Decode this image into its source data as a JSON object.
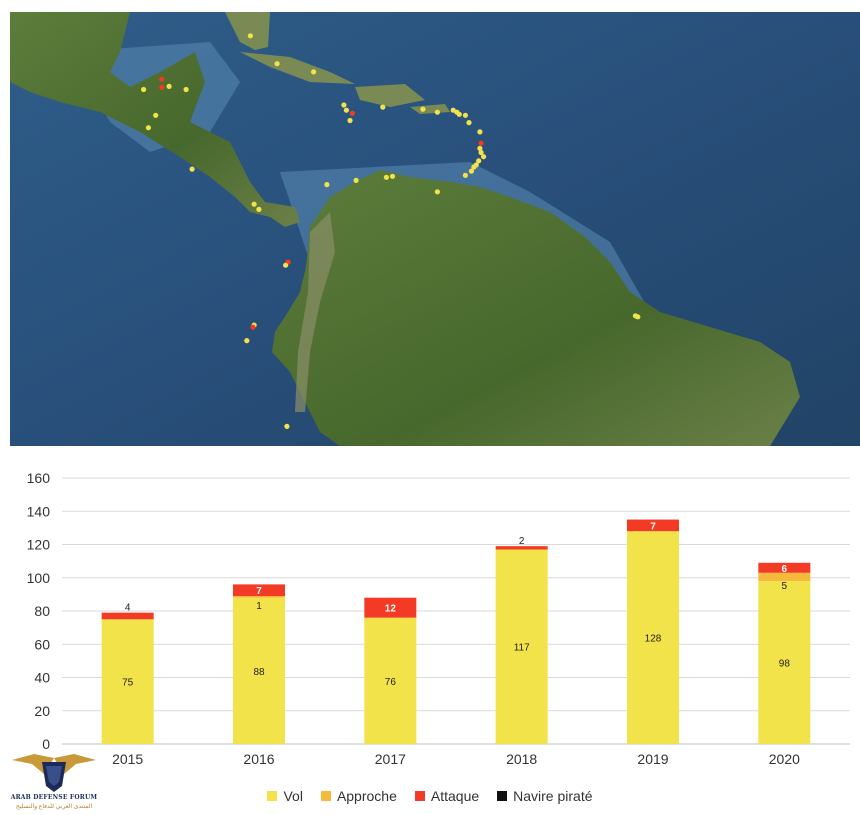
{
  "map": {
    "points": [
      {
        "lat": 25.7,
        "lon": -80.2,
        "type": "theft"
      },
      {
        "lat": 21.5,
        "lon": -87.5,
        "type": "attack"
      },
      {
        "lat": 20.7,
        "lon": -87.5,
        "type": "attack"
      },
      {
        "lat": 20.5,
        "lon": -89.0,
        "type": "theft"
      },
      {
        "lat": 20.8,
        "lon": -86.9,
        "type": "theft"
      },
      {
        "lat": 20.5,
        "lon": -85.5,
        "type": "theft"
      },
      {
        "lat": 18.0,
        "lon": -88.0,
        "type": "theft"
      },
      {
        "lat": 16.8,
        "lon": -88.6,
        "type": "theft"
      },
      {
        "lat": 23.0,
        "lon": -78.0,
        "type": "theft"
      },
      {
        "lat": 22.2,
        "lon": -75.0,
        "type": "theft"
      },
      {
        "lat": 19.0,
        "lon": -72.5,
        "type": "theft"
      },
      {
        "lat": 18.5,
        "lon": -72.3,
        "type": "theft"
      },
      {
        "lat": 18.2,
        "lon": -71.8,
        "type": "attack"
      },
      {
        "lat": 17.5,
        "lon": -72.0,
        "type": "theft"
      },
      {
        "lat": 18.8,
        "lon": -69.3,
        "type": "theft"
      },
      {
        "lat": 18.6,
        "lon": -66.0,
        "type": "theft"
      },
      {
        "lat": 18.3,
        "lon": -64.8,
        "type": "theft"
      },
      {
        "lat": 18.5,
        "lon": -63.5,
        "type": "theft"
      },
      {
        "lat": 18.3,
        "lon": -63.2,
        "type": "theft"
      },
      {
        "lat": 18.1,
        "lon": -63.0,
        "type": "theft"
      },
      {
        "lat": 18.0,
        "lon": -62.5,
        "type": "theft"
      },
      {
        "lat": 17.3,
        "lon": -62.2,
        "type": "theft"
      },
      {
        "lat": 16.4,
        "lon": -61.3,
        "type": "theft"
      },
      {
        "lat": 15.3,
        "lon": -61.2,
        "type": "attack"
      },
      {
        "lat": 14.8,
        "lon": -61.3,
        "type": "theft"
      },
      {
        "lat": 14.4,
        "lon": -61.2,
        "type": "theft"
      },
      {
        "lat": 14.0,
        "lon": -61.0,
        "type": "theft"
      },
      {
        "lat": 13.6,
        "lon": -61.4,
        "type": "theft"
      },
      {
        "lat": 13.2,
        "lon": -61.6,
        "type": "theft"
      },
      {
        "lat": 13.0,
        "lon": -61.8,
        "type": "theft"
      },
      {
        "lat": 12.6,
        "lon": -62.0,
        "type": "theft"
      },
      {
        "lat": 12.2,
        "lon": -62.5,
        "type": "theft"
      },
      {
        "lat": 12.0,
        "lon": -69.0,
        "type": "theft"
      },
      {
        "lat": 12.1,
        "lon": -68.5,
        "type": "theft"
      },
      {
        "lat": 11.7,
        "lon": -71.5,
        "type": "theft"
      },
      {
        "lat": 11.3,
        "lon": -73.9,
        "type": "theft"
      },
      {
        "lat": 10.6,
        "lon": -64.8,
        "type": "theft"
      },
      {
        "lat": 9.4,
        "lon": -79.9,
        "type": "theft"
      },
      {
        "lat": 8.9,
        "lon": -79.5,
        "type": "theft"
      },
      {
        "lat": 12.8,
        "lon": -85.0,
        "type": "theft"
      },
      {
        "lat": 3.8,
        "lon": -77.1,
        "type": "attack"
      },
      {
        "lat": 3.5,
        "lon": -77.3,
        "type": "theft"
      },
      {
        "lat": -2.3,
        "lon": -79.9,
        "type": "theft"
      },
      {
        "lat": -2.5,
        "lon": -80.0,
        "type": "attack"
      },
      {
        "lat": -3.8,
        "lon": -80.5,
        "type": "theft"
      },
      {
        "lat": -12.1,
        "lon": -77.2,
        "type": "theft"
      },
      {
        "lat": -1.4,
        "lon": -48.5,
        "type": "theft"
      },
      {
        "lat": -1.5,
        "lon": -48.3,
        "type": "theft"
      }
    ]
  },
  "chart_data": {
    "type": "bar",
    "stacked": true,
    "categories": [
      "2015",
      "2016",
      "2017",
      "2018",
      "2019",
      "2020"
    ],
    "ylim": [
      0,
      160
    ],
    "yticks": [
      "0",
      "20",
      "40",
      "60",
      "80",
      "100",
      "120",
      "140",
      "160"
    ],
    "grid": true,
    "legend_position": "bottom",
    "series": [
      {
        "name": "Vol",
        "color": "#F2E34A",
        "values": [
          75,
          88,
          76,
          117,
          128,
          98
        ],
        "labels": [
          "75",
          "88",
          "76",
          "117",
          "128",
          "98"
        ]
      },
      {
        "name": "Approche",
        "color": "#F6B93B",
        "values": [
          0,
          1,
          0,
          0,
          0,
          5
        ],
        "labels": [
          "",
          "1",
          "",
          "",
          "",
          "5"
        ]
      },
      {
        "name": "Attaque",
        "color": "#F23A24",
        "values": [
          4,
          7,
          12,
          2,
          7,
          6
        ],
        "labels": [
          "4",
          "7",
          "12",
          "2",
          "7",
          "6"
        ]
      },
      {
        "name": "Navire piraté",
        "color": "#111111",
        "values": [
          0,
          0,
          0,
          0,
          0,
          0
        ],
        "labels": [
          "",
          "",
          "",
          "",
          "",
          ""
        ]
      }
    ]
  },
  "watermark": {
    "name": "ARAB DEFENSE FORUM",
    "subtitle": "المنتدى العربي للدفاع والتسليح"
  }
}
